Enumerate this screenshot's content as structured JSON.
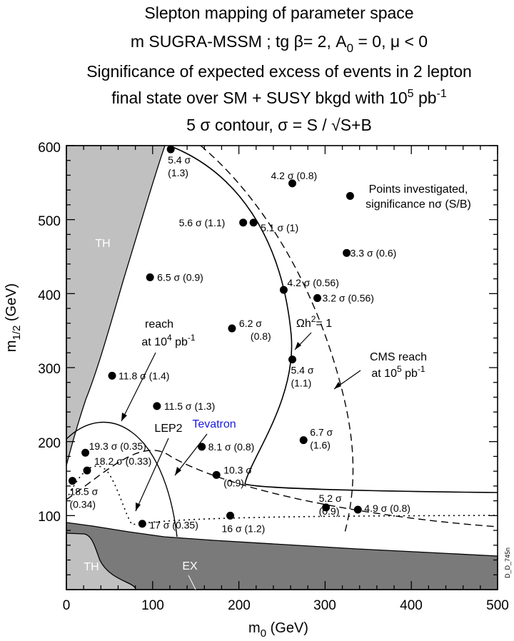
{
  "chart_data": {
    "type": "scatter",
    "title": [
      "Slepton mapping of parameter space",
      "m SUGRA-MSSM ; tg β= 2, A",
      "Significance of expected excess of events in 2 lepton",
      "final state over SM + SUSY bkgd with 10",
      "5 σ contour, σ = S / √S+B"
    ],
    "title_sub": {
      "A_index": "0",
      "rest": " = 0, μ < 0",
      "pb_power": "5",
      "pb_unit": " pb",
      "pb_exp": "-1"
    },
    "xlabel": "m",
    "xlabel_sub": "0",
    "xlabel_unit": " (GeV)",
    "ylabel": "m",
    "ylabel_sub": "1/2",
    "ylabel_unit": " (GeV)",
    "xlim": [
      0,
      500
    ],
    "ylim": [
      0,
      600
    ],
    "xticks": [
      "0",
      "100",
      "200",
      "300",
      "400",
      "500"
    ],
    "yticks": [
      "100",
      "200",
      "300",
      "400",
      "500",
      "600"
    ],
    "points": [
      {
        "x": 121,
        "y": 595,
        "label": "5.4 σ",
        "label2": "(1.3)"
      },
      {
        "x": 262,
        "y": 549,
        "label": "4.2 σ (0.8)"
      },
      {
        "x": 329,
        "y": 532,
        "label": ""
      },
      {
        "x": 205,
        "y": 496,
        "label": "5.6 σ  (1.1)"
      },
      {
        "x": 217,
        "y": 496,
        "label": "5.1 σ (1)"
      },
      {
        "x": 97,
        "y": 422,
        "label": "6.5 σ (0.9)"
      },
      {
        "x": 325,
        "y": 455,
        "label": "3.3 σ (0.6)"
      },
      {
        "x": 252,
        "y": 405,
        "label": "4.2 σ (0.56)"
      },
      {
        "x": 291,
        "y": 394,
        "label": "3.2 σ (0.56)"
      },
      {
        "x": 192,
        "y": 353,
        "label": "6.2 σ",
        "label2": "(0.8)"
      },
      {
        "x": 262,
        "y": 311,
        "label": "5.4 σ",
        "label2": "(1.1)"
      },
      {
        "x": 53,
        "y": 289,
        "label": "11.8 σ (1.4)"
      },
      {
        "x": 105,
        "y": 248,
        "label": "11.5 σ (1.3)"
      },
      {
        "x": 157,
        "y": 193,
        "label": "8.1 σ (0.8)"
      },
      {
        "x": 275,
        "y": 202,
        "label": "6.7 σ",
        "label2": "(1.6)"
      },
      {
        "x": 22,
        "y": 185,
        "label": "19.3 σ (0.35)"
      },
      {
        "x": 24,
        "y": 161,
        "label": "18.2 σ (0.33)"
      },
      {
        "x": 174,
        "y": 155,
        "label": "10.3 σ",
        "label2": "(0.9)"
      },
      {
        "x": 7,
        "y": 147,
        "label": "18.5 σ",
        "label2": "(0.34)"
      },
      {
        "x": 301,
        "y": 111,
        "label": "5.2 σ",
        "label2": "(0.9)"
      },
      {
        "x": 338,
        "y": 108,
        "label": "4.9 σ (0.8)"
      },
      {
        "x": 88,
        "y": 89,
        "label": "17 σ (0.35)"
      },
      {
        "x": 190,
        "y": 100,
        "label": "16 σ (1.2)"
      }
    ],
    "annotations": {
      "points_investigated_1": "Points investigated,",
      "points_investigated_2": "significance nσ (S/B)",
      "reach_1": "reach",
      "reach_2_base": "at 10",
      "reach_2_exp": "4",
      "reach_2_unit": " pb",
      "reach_2_unit_exp": "-1",
      "omega": "Ωh",
      "omega_exp": "2",
      "omega_rest": "= 1",
      "cms_1": "CMS reach",
      "cms_2_base": "at 10",
      "cms_2_exp": "5",
      "cms_2_unit": " pb",
      "cms_2_unit_exp": "-1",
      "lep2": "LEP2",
      "tevatron": "Tevatron",
      "th_upper": "TH",
      "th_lower": "TH",
      "ex": "EX",
      "side_id": "D_D_745n"
    },
    "colors": {
      "theory_excluded": "#c0c0c0",
      "experiment_excluded": "#7a7a7a",
      "tevatron": "#1a1adc",
      "points": "#000000"
    },
    "grid": false,
    "legend": "none"
  }
}
